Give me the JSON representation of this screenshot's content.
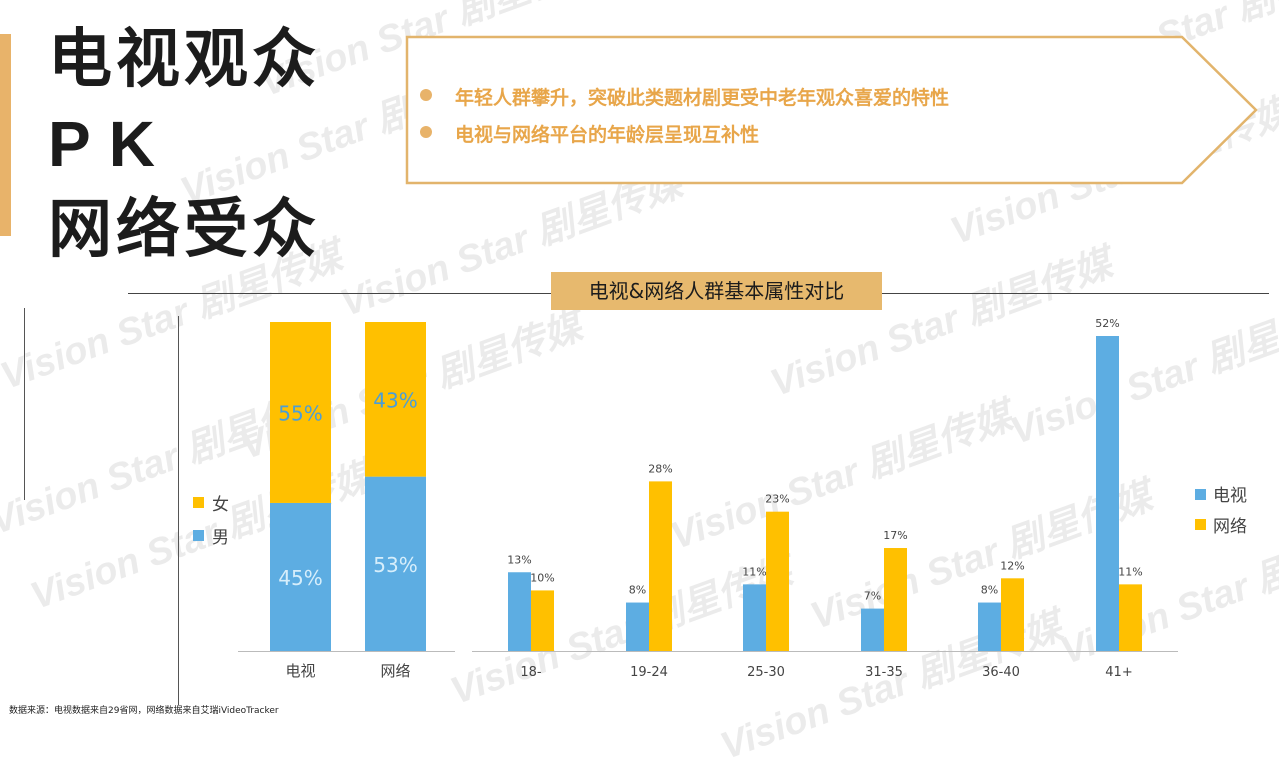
{
  "page": {
    "title_lines": [
      "电视观众",
      "PK",
      "网络受众"
    ],
    "callout": {
      "bullets": [
        "年轻人群攀升，突破此类题材剧更受中老年观众喜爱的特性",
        "电视与网络平台的年龄层呈现互补性"
      ]
    },
    "subtitle": "电视&网络人群基本属性对比",
    "footnote": "数据来源：电视数据来自29省网，网络数据来自艾瑞iVideoTracker",
    "watermark": "Vision Star 剧星传媒"
  },
  "colors": {
    "accent": "#E8B36A",
    "blue": "#5DADE2",
    "yellow": "#FFC000",
    "callout_text": "#E8A64A"
  },
  "chart_data": [
    {
      "type": "bar",
      "stacked": true,
      "categories": [
        "电视",
        "网络"
      ],
      "series": [
        {
          "name": "男",
          "values": [
            45,
            53
          ],
          "labels": [
            "45%",
            "53%"
          ]
        },
        {
          "name": "女",
          "values": [
            55,
            43
          ],
          "labels": [
            "55%",
            "43%"
          ]
        }
      ],
      "legend": [
        "女",
        "男"
      ],
      "legend_position": "left",
      "ylim": [
        0,
        100
      ]
    },
    {
      "type": "bar",
      "categories": [
        "18-",
        "19-24",
        "25-30",
        "31-35",
        "36-40",
        "41+"
      ],
      "series": [
        {
          "name": "电视",
          "values": [
            13,
            8,
            11,
            7,
            8,
            52
          ],
          "labels": [
            "13%",
            "8%",
            "11%",
            "7%",
            "8%",
            "52%"
          ]
        },
        {
          "name": "网络",
          "values": [
            10,
            28,
            23,
            17,
            12,
            11
          ],
          "labels": [
            "10%",
            "28%",
            "23%",
            "17%",
            "12%",
            "11%"
          ]
        }
      ],
      "legend": [
        "电视",
        "网络"
      ],
      "legend_position": "right",
      "ylim": [
        0,
        52
      ]
    }
  ]
}
